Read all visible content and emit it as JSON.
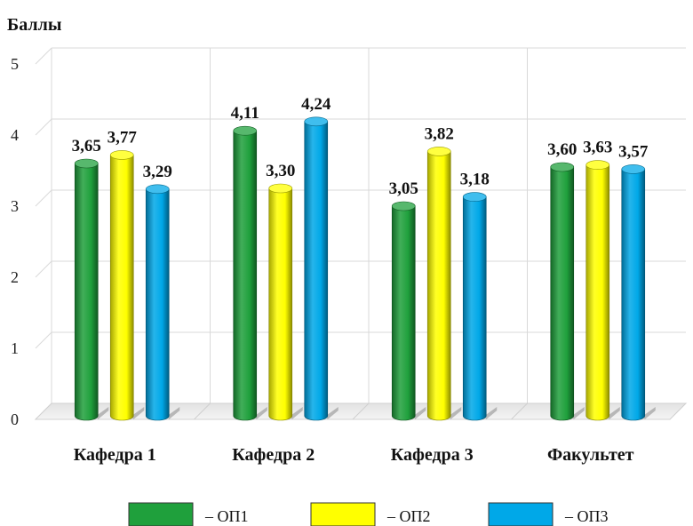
{
  "chart_data": {
    "type": "bar",
    "ylabel": "Баллы",
    "xlabel": "",
    "ylim": [
      0,
      5
    ],
    "yticks": [
      "0",
      "1",
      "2",
      "3",
      "4",
      "5"
    ],
    "categories": [
      "Кафедра 1",
      "Кафедра 2",
      "Кафедра 3",
      "Факультет"
    ],
    "series": [
      {
        "name": "– ОП1",
        "color": "#1fa03c",
        "values": [
          3.65,
          4.11,
          3.05,
          3.6
        ],
        "labels": [
          "3,65",
          "4,11",
          "3,05",
          "3,60"
        ]
      },
      {
        "name": "– ОП2",
        "color": "#ffff00",
        "values": [
          3.77,
          3.3,
          3.82,
          3.63
        ],
        "labels": [
          "3,77",
          "3,30",
          "3,82",
          "3,63"
        ]
      },
      {
        "name": "– ОП3",
        "color": "#00a8e8",
        "values": [
          3.29,
          4.24,
          3.18,
          3.57
        ],
        "labels": [
          "3,29",
          "4,24",
          "3,18",
          "3,57"
        ]
      }
    ],
    "grid": true,
    "legend": "bottom",
    "style": "3d-cylinder"
  }
}
